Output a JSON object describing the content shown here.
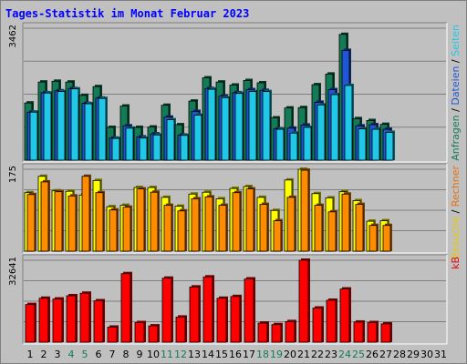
{
  "chart_data": {
    "title": "Tages-Statistik im Monat Februar 2023",
    "type": "bar",
    "x": [
      1,
      2,
      3,
      4,
      5,
      6,
      7,
      8,
      9,
      10,
      11,
      12,
      13,
      14,
      15,
      16,
      17,
      18,
      19,
      20,
      21,
      22,
      23,
      24,
      25,
      26,
      27,
      28,
      29,
      30,
      31
    ],
    "x_tick_colors": [
      "#000000",
      "#000000",
      "#000000",
      "#137b55",
      "#137b55",
      "#000000",
      "#000000",
      "#000000",
      "#000000",
      "#000000",
      "#137b55",
      "#137b55",
      "#000000",
      "#000000",
      "#000000",
      "#000000",
      "#000000",
      "#137b55",
      "#137b55",
      "#000000",
      "#000000",
      "#000000",
      "#000000",
      "#137b55",
      "#137b55",
      "#000000",
      "#000000",
      "#000000",
      "#000000",
      "#000000",
      "#000000"
    ],
    "panels": [
      {
        "name": "hits",
        "ymax_label": "3462",
        "ymax": 3462,
        "label_parts": [
          {
            "text": "Anfragen",
            "color": "#137b55"
          },
          {
            "text": " / ",
            "color": "#000000"
          },
          {
            "text": "Dateien",
            "color": "#2056d6"
          },
          {
            "text": " / ",
            "color": "#000000"
          },
          {
            "text": "Seiten",
            "color": "#20c8e8"
          }
        ],
        "series": [
          {
            "name": "Anfragen",
            "color": "#137b55",
            "values": [
              1500,
              2050,
              2070,
              2050,
              1700,
              1930,
              860,
              1420,
              860,
              870,
              1440,
              930,
              1550,
              2160,
              2050,
              1970,
              2090,
              2030,
              1110,
              1370,
              1380,
              1980,
              2260,
              3300,
              1090,
              1040,
              940,
              0,
              0,
              0,
              0
            ]
          },
          {
            "name": "Dateien",
            "color": "#2056d6",
            "values": [
              1260,
              1770,
              1820,
              1880,
              1490,
              1630,
              580,
              900,
              610,
              690,
              1130,
              660,
              1280,
              1880,
              1680,
              1770,
              1850,
              1830,
              820,
              840,
              920,
              1520,
              1850,
              2880,
              900,
              930,
              810,
              0,
              0,
              0,
              0
            ]
          },
          {
            "name": "Seiten",
            "color": "#20c8e8",
            "values": [
              1260,
              1760,
              1800,
              1870,
              1480,
              1620,
              570,
              840,
              580,
              660,
              1060,
              650,
              1180,
              1860,
              1640,
              1750,
              1800,
              1800,
              810,
              710,
              860,
              1450,
              1720,
              1960,
              820,
              810,
              730,
              0,
              0,
              0,
              0
            ]
          }
        ]
      },
      {
        "name": "visits",
        "ymax_label": "175",
        "ymax": 175,
        "label_parts": [
          {
            "text": "Besuche",
            "color": "#e8c800"
          },
          {
            "text": " / ",
            "color": "#000000"
          },
          {
            "text": "Rechner",
            "color": "#e87010"
          }
        ],
        "series": [
          {
            "name": "Besuche",
            "color": "#ffff00",
            "values": [
              125,
              160,
              129,
              128,
              120,
              151,
              95,
              98,
              136,
              136,
              115,
              96,
              122,
              126,
              112,
              134,
              138,
              115,
              87,
              152,
              175,
              123,
              114,
              127,
              108,
              64,
              65,
              0,
              0,
              0,
              0
            ]
          },
          {
            "name": "Rechner",
            "color": "#ff8c00",
            "values": [
              121,
              148,
              127,
              118,
              160,
              125,
              88,
              94,
              133,
              126,
              98,
              86,
              112,
              116,
              98,
              125,
              133,
              100,
              65,
              115,
              173,
              98,
              84,
              122,
              100,
              55,
              55,
              0,
              0,
              0,
              0
            ]
          }
        ]
      },
      {
        "name": "kb",
        "ymax_label": "32641",
        "ymax": 32641,
        "label_parts": [
          {
            "text": "kB",
            "color": "#e80000"
          }
        ],
        "series": [
          {
            "name": "kB",
            "color": "#ff0000",
            "values": [
              15000,
              17500,
              17200,
              18500,
              19500,
              16500,
              6000,
              27300,
              7800,
              6500,
              25500,
              10000,
              22000,
              26000,
              17500,
              18200,
              25200,
              7600,
              7000,
              8200,
              32641,
              13600,
              16700,
              21200,
              8000,
              7800,
              7300,
              0,
              0,
              0,
              0
            ]
          }
        ]
      }
    ]
  }
}
